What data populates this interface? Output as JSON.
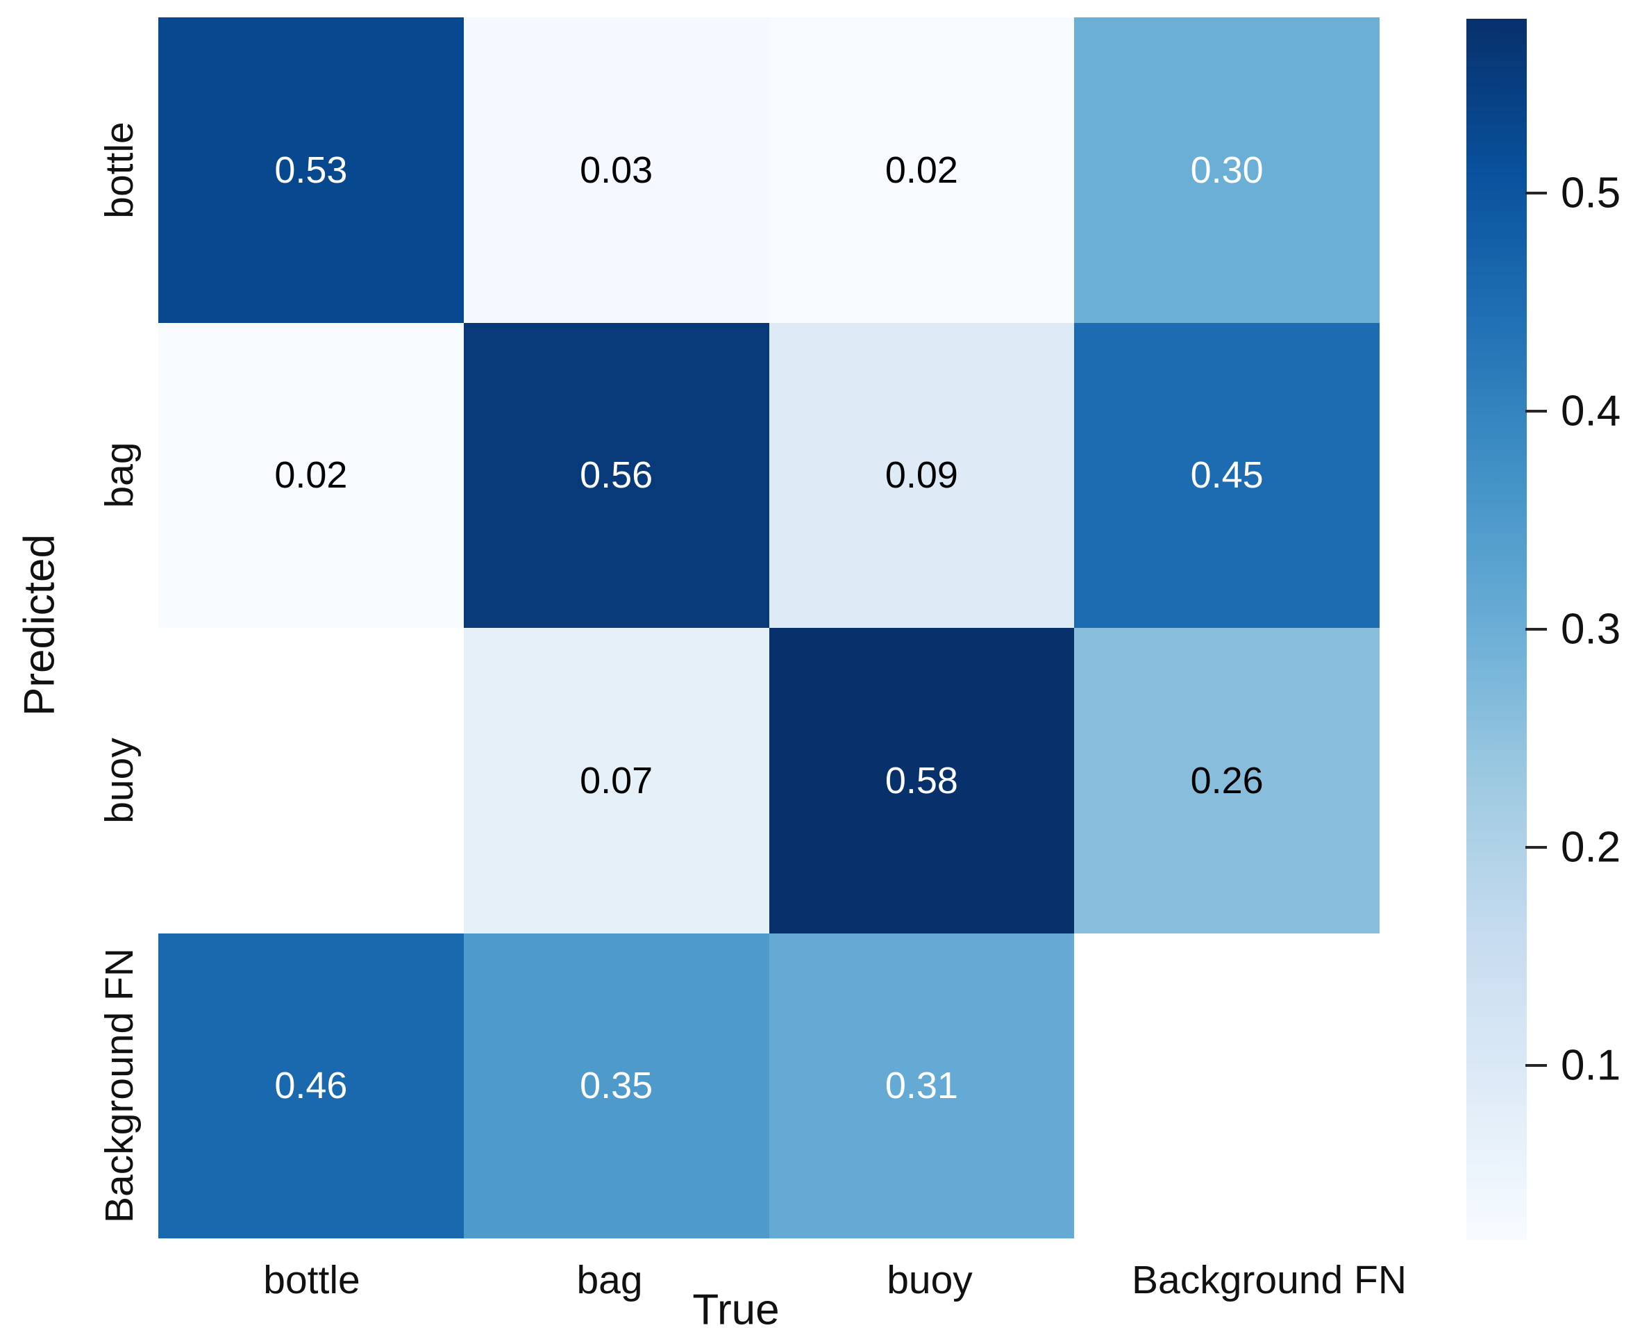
{
  "figure": {
    "background_color": "#ffffff",
    "text_color": "#111111"
  },
  "chart_data": {
    "type": "heatmap",
    "subtype": "confusion-matrix",
    "title": "",
    "xlabel": "True",
    "ylabel": "Predicted",
    "x_tick_labels": [
      "bottle",
      "bag",
      "buoy",
      "Background FN"
    ],
    "y_tick_labels": [
      "bottle",
      "bag",
      "buoy",
      "Background FN"
    ],
    "matrix": [
      [
        0.53,
        0.03,
        0.02,
        0.3
      ],
      [
        0.02,
        0.56,
        0.09,
        0.45
      ],
      [
        null,
        0.07,
        0.58,
        0.26
      ],
      [
        0.46,
        0.35,
        0.31,
        null
      ]
    ],
    "cell_labels": [
      [
        "0.53",
        "0.03",
        "0.02",
        "0.30"
      ],
      [
        "0.02",
        "0.56",
        "0.09",
        "0.45"
      ],
      [
        "",
        "0.07",
        "0.58",
        "0.26"
      ],
      [
        "0.46",
        "0.35",
        "0.31",
        ""
      ]
    ],
    "cell_colors": [
      [
        "#08488e",
        "#f3f9fe",
        "#f7fbff",
        "#6baed6"
      ],
      [
        "#f7fbff",
        "#083979",
        "#deebf7",
        "#1d6cb1"
      ],
      [
        "#ffffff",
        "#e5f0f9",
        "#08306b",
        "#88bedc"
      ],
      [
        "#1a68ae",
        "#4e9acb",
        "#65aad4",
        "#ffffff"
      ]
    ],
    "cell_text_colors": [
      [
        "#ffffff",
        "#000000",
        "#000000",
        "#ffffff"
      ],
      [
        "#000000",
        "#ffffff",
        "#000000",
        "#ffffff"
      ],
      [
        "#000000",
        "#000000",
        "#ffffff",
        "#000000"
      ],
      [
        "#ffffff",
        "#ffffff",
        "#ffffff",
        "#000000"
      ]
    ],
    "colormap": "Blues",
    "vmin": 0.02,
    "vmax": 0.58,
    "grid": false,
    "colorbar": {
      "position": "right",
      "tick_labels": [
        "0.5",
        "0.4",
        "0.3",
        "0.2",
        "0.1"
      ],
      "tick_values": [
        0.5,
        0.4,
        0.3,
        0.2,
        0.1
      ],
      "gradient_top_to_bottom": [
        "#08306b",
        "#08519c",
        "#2171b5",
        "#4292c6",
        "#6baed6",
        "#9ecae1",
        "#c6dbef",
        "#deebf7",
        "#f7fbff"
      ]
    }
  }
}
